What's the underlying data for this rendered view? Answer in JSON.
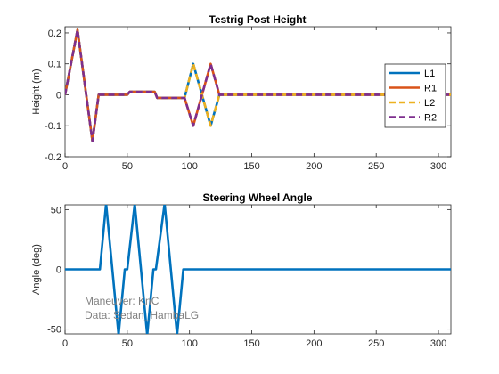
{
  "chart_data": [
    {
      "type": "line",
      "title": "Testrig Post Height",
      "xlabel": "",
      "ylabel": "Height (m)",
      "xlim": [
        0,
        310
      ],
      "ylim": [
        -0.2,
        0.22
      ],
      "xticks": [
        0,
        50,
        100,
        150,
        200,
        250,
        300
      ],
      "yticks": [
        -0.2,
        -0.1,
        0,
        0.1,
        0.2
      ],
      "grid": false,
      "legend_position": "right",
      "series": [
        {
          "name": "L1",
          "color": "#0072BD",
          "style": "solid",
          "x": [
            0,
            10,
            22,
            27,
            50,
            52,
            72,
            74,
            96,
            103,
            110,
            117,
            124,
            310
          ],
          "y": [
            0,
            0.21,
            -0.15,
            0,
            0,
            0.01,
            0.01,
            -0.01,
            -0.01,
            0.1,
            0,
            -0.1,
            0,
            0
          ]
        },
        {
          "name": "R1",
          "color": "#D95319",
          "style": "solid",
          "x": [
            0,
            10,
            22,
            27,
            50,
            52,
            72,
            74,
            96,
            103,
            110,
            117,
            124,
            310
          ],
          "y": [
            0,
            0.21,
            -0.15,
            0,
            0,
            0.01,
            0.01,
            -0.01,
            -0.01,
            -0.1,
            0,
            0.1,
            0,
            0
          ]
        },
        {
          "name": "L2",
          "color": "#EDB120",
          "style": "dashed",
          "x": [
            0,
            10,
            22,
            27,
            50,
            52,
            72,
            74,
            96,
            103,
            110,
            117,
            124,
            310
          ],
          "y": [
            0,
            0.21,
            -0.15,
            0,
            0,
            0.01,
            0.01,
            -0.01,
            -0.01,
            0.1,
            0,
            -0.1,
            0,
            0
          ]
        },
        {
          "name": "R2",
          "color": "#7E2F8E",
          "style": "dashed",
          "x": [
            0,
            10,
            22,
            27,
            50,
            52,
            72,
            74,
            96,
            103,
            110,
            117,
            124,
            310
          ],
          "y": [
            0,
            0.21,
            -0.15,
            0,
            0,
            0.01,
            0.01,
            -0.01,
            -0.01,
            -0.1,
            0,
            0.1,
            0,
            0
          ]
        }
      ]
    },
    {
      "type": "line",
      "title": "Steering Wheel Angle",
      "xlabel": "",
      "ylabel": "Angle (deg)",
      "xlim": [
        0,
        310
      ],
      "ylim": [
        -54,
        54
      ],
      "xticks": [
        0,
        50,
        100,
        150,
        200,
        250,
        300
      ],
      "yticks": [
        -50,
        0,
        50
      ],
      "grid": false,
      "annotations": [
        "Maneuver: KnC",
        "Data: Sedan_HambaLG"
      ],
      "series": [
        {
          "name": "",
          "color": "#0072BD",
          "style": "solid",
          "x": [
            0,
            28,
            33,
            43,
            48,
            50,
            56,
            66,
            71,
            73,
            80,
            90,
            95,
            310
          ],
          "y": [
            0,
            0,
            55,
            -55,
            0,
            0,
            55,
            -55,
            0,
            0,
            55,
            -55,
            0,
            0
          ]
        }
      ]
    }
  ]
}
